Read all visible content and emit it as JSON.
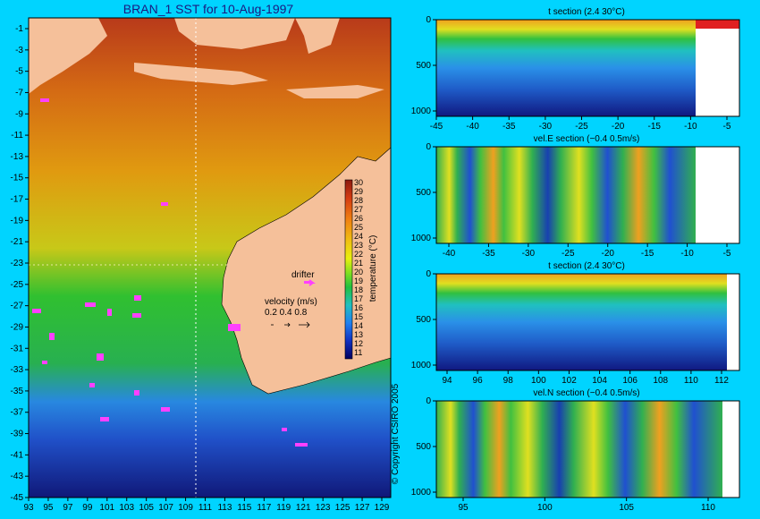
{
  "chart_data": [
    {
      "type": "heatmap",
      "title": "BRAN_1 SST for 10-Aug-1997",
      "x_ticks": [
        "93",
        "95",
        "97",
        "99",
        "101",
        "103",
        "105",
        "107",
        "109",
        "111",
        "113",
        "115",
        "117",
        "119",
        "121",
        "123",
        "125",
        "127",
        "129"
      ],
      "y_ticks": [
        "-1",
        "-3",
        "-5",
        "-7",
        "-9",
        "-11",
        "-13",
        "-15",
        "-17",
        "-19",
        "-21",
        "-23",
        "-25",
        "-27",
        "-29",
        "-31",
        "-33",
        "-35",
        "-37",
        "-39",
        "-41",
        "-43",
        "-45"
      ],
      "xlim": [
        93,
        130
      ],
      "ylim": [
        -45,
        0
      ],
      "colorbar": {
        "label": "temperature (°C)",
        "ticks": [
          "30",
          "29",
          "28",
          "27",
          "26",
          "25",
          "24",
          "23",
          "22",
          "21",
          "20",
          "19",
          "18",
          "17",
          "16",
          "15",
          "14",
          "13",
          "12",
          "11"
        ]
      },
      "annotations": {
        "drifter": "drifter",
        "velocity_label": "velocity (m/s)",
        "velocity_scale": "0.2 0.4 0.8"
      },
      "copyright": "© Copyright CSIRO 2005"
    },
    {
      "type": "heatmap",
      "title": "t section (2.4      30°C)",
      "x_ticks": [
        "-45",
        "-40",
        "-35",
        "-30",
        "-25",
        "-20",
        "-15",
        "-10",
        "-5"
      ],
      "y_ticks": [
        "0",
        "500",
        "1000"
      ]
    },
    {
      "type": "heatmap",
      "title": "vel.E section (−0.4      0.5m/s)",
      "x_ticks": [
        "-40",
        "-35",
        "-30",
        "-25",
        "-20",
        "-15",
        "-10",
        "-5"
      ],
      "y_ticks": [
        "0",
        "500",
        "1000"
      ]
    },
    {
      "type": "heatmap",
      "title": "t section (2.4      30°C)",
      "x_ticks": [
        "94",
        "96",
        "98",
        "100",
        "102",
        "104",
        "106",
        "108",
        "110",
        "112"
      ],
      "y_ticks": [
        "0",
        "500",
        "1000"
      ]
    },
    {
      "type": "heatmap",
      "title": "vel.N section (−0.4      0.5m/s)",
      "x_ticks": [
        "95",
        "100",
        "105",
        "110"
      ],
      "y_ticks": [
        "0",
        "500",
        "1000"
      ]
    }
  ]
}
